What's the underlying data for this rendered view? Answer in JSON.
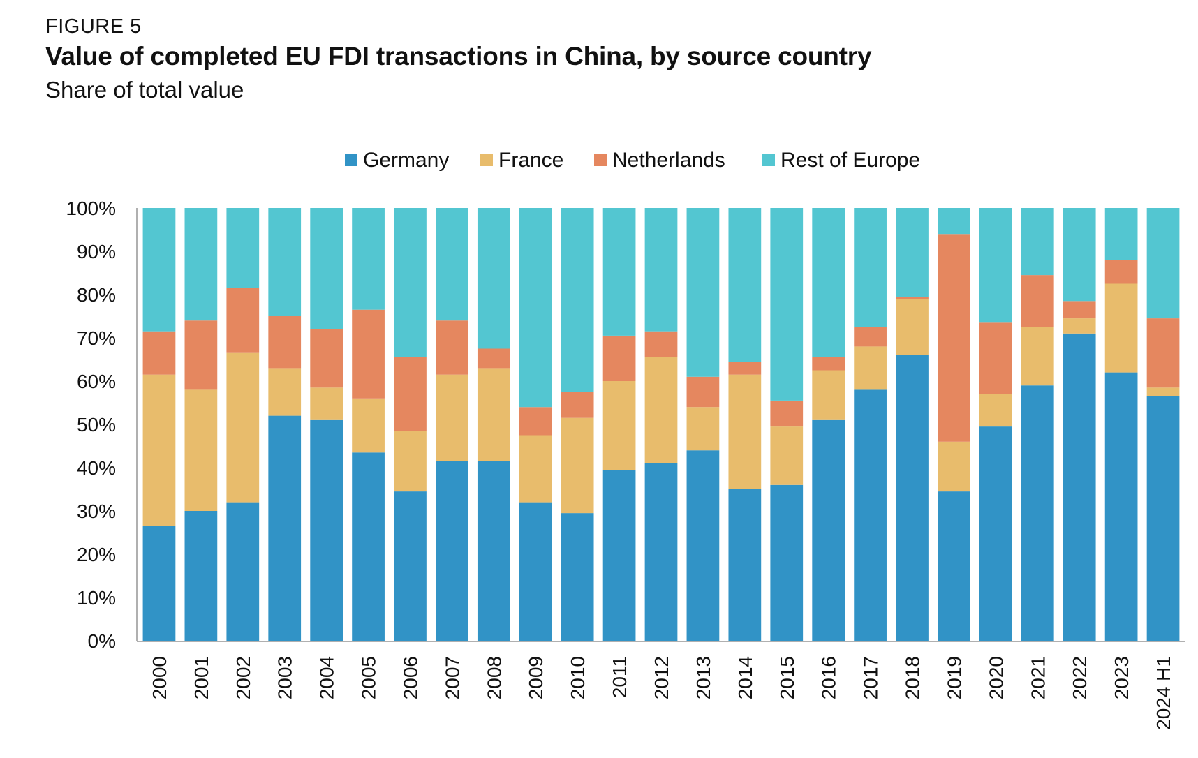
{
  "header": {
    "figure_label": "FIGURE 5",
    "title": "Value of completed EU FDI transactions in China, by source country",
    "subtitle": "Share of total value"
  },
  "chart_data": {
    "type": "bar",
    "stacked": true,
    "title": "Value of completed EU FDI transactions in China, by source country",
    "subtitle": "Share of total value",
    "xlabel": "",
    "ylabel": "",
    "ylim": [
      0,
      100
    ],
    "yticks": [
      "0%",
      "10%",
      "20%",
      "30%",
      "40%",
      "50%",
      "60%",
      "70%",
      "80%",
      "90%",
      "100%"
    ],
    "grid": false,
    "legend_position": "top-center",
    "categories": [
      "2000",
      "2001",
      "2002",
      "2003",
      "2004",
      "2005",
      "2006",
      "2007",
      "2008",
      "2009",
      "2010",
      "2011",
      "2012",
      "2013",
      "2014",
      "2015",
      "2016",
      "2017",
      "2018",
      "2019",
      "2020",
      "2021",
      "2022",
      "2023",
      "2024 H1"
    ],
    "series": [
      {
        "name": "Germany",
        "color": "#3193c6",
        "values": [
          26.5,
          30,
          32,
          52,
          51,
          43.5,
          34.5,
          41.5,
          41.5,
          32,
          29.5,
          39.5,
          41,
          44,
          35,
          36,
          51,
          58,
          66,
          34.5,
          49.5,
          59,
          71,
          62,
          56.5
        ]
      },
      {
        "name": "France",
        "color": "#e8bc6c",
        "values": [
          35,
          28,
          34.5,
          11,
          7.5,
          12.5,
          14,
          20,
          21.5,
          15.5,
          22,
          20.5,
          24.5,
          10,
          26.5,
          13.5,
          11.5,
          10,
          13,
          11.5,
          7.5,
          13.5,
          3.5,
          20.5,
          2
        ]
      },
      {
        "name": "Netherlands",
        "color": "#e5875f",
        "values": [
          10,
          16,
          15,
          12,
          13.5,
          20.5,
          17,
          12.5,
          4.5,
          6.5,
          6,
          10.5,
          6,
          7,
          3,
          6,
          3,
          4.5,
          0.5,
          48,
          16.5,
          12,
          4,
          5.5,
          16
        ]
      },
      {
        "name": "Rest of Europe",
        "color": "#53c6d1",
        "values": [
          28.5,
          26,
          18.5,
          25,
          28,
          23.5,
          34.5,
          26,
          32.5,
          46,
          42.5,
          29.5,
          28.5,
          39,
          35.5,
          44.5,
          34.5,
          27.5,
          20.5,
          6,
          26.5,
          15.5,
          21.5,
          12,
          25.5
        ]
      }
    ]
  }
}
